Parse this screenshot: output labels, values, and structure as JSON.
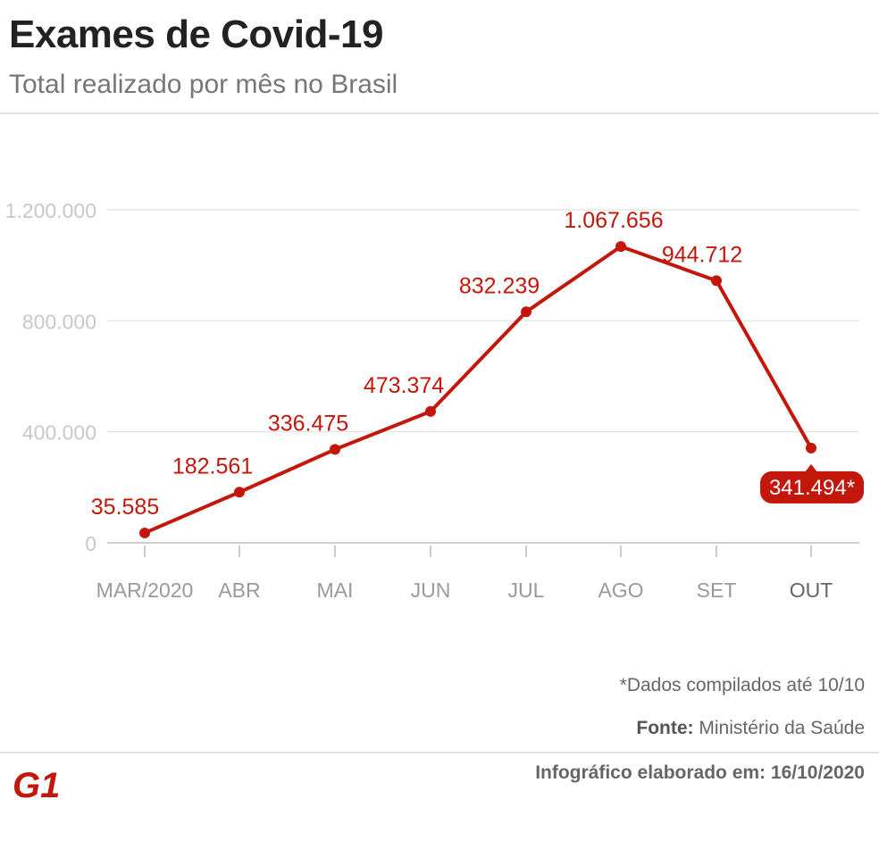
{
  "header": {
    "title": "Exames de Covid-19",
    "subtitle": "Total realizado por mês no Brasil"
  },
  "chart_data": {
    "type": "line",
    "title": "Exames de Covid-19",
    "subtitle": "Total realizado por mês no Brasil",
    "categories": [
      "MAR/2020",
      "ABR",
      "MAI",
      "JUN",
      "JUL",
      "AGO",
      "SET",
      "OUT"
    ],
    "series": [
      {
        "values": [
          35585,
          182561,
          336475,
          473374,
          832239,
          1067656,
          944712,
          341494
        ],
        "labels": [
          "35.585",
          "182.561",
          "336.475",
          "473.374",
          "832.239",
          "1.067.656",
          "944.712",
          "341.494*"
        ]
      }
    ],
    "y_ticks": [
      {
        "value": 0,
        "label": "0"
      },
      {
        "value": 400000,
        "label": "400.000"
      },
      {
        "value": 800000,
        "label": "800.000"
      },
      {
        "value": 1200000,
        "label": "1.200.000"
      }
    ],
    "ylim": [
      0,
      1200000
    ],
    "grid": true,
    "highlight_last_label": true,
    "line_color": "#c4170c",
    "label_color": "#c4170c",
    "axis_label_color": "#9a9a9a",
    "gridline_color": "#e6e6e6"
  },
  "footer": {
    "note": "*Dados compilados até 10/10",
    "source_label": "Fonte:",
    "source_value": "Ministério da Saúde",
    "credit": "Infográfico elaborado em: 16/10/2020",
    "logo_text": "G1",
    "logo_color": "#c4170c"
  }
}
